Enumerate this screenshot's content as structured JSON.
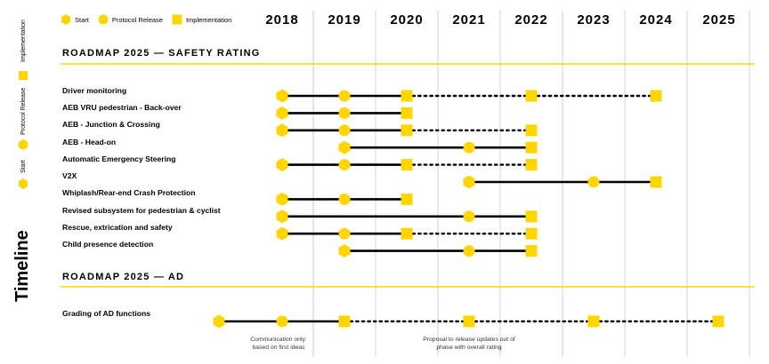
{
  "colors": {
    "marker": "#ffd500",
    "line": "#000000",
    "accent_rule": "#ffd500",
    "grid": "#c8c8c8"
  },
  "legend": {
    "start": "Start",
    "protocol_release": "Protocol Release",
    "implementation": "Implementation"
  },
  "side_legend": {
    "implementation": "Implementation",
    "protocol_release": "Protocol Release",
    "start": "Start",
    "timeline": "Timeline"
  },
  "years": [
    "2018",
    "2019",
    "2020",
    "2021",
    "2022",
    "2023",
    "2024",
    "2025"
  ],
  "sections": [
    {
      "title": "ROADMAP 2025 — SAFETY RATING"
    },
    {
      "title": "ROADMAP 2025 — AD"
    }
  ],
  "rows": [
    {
      "label": "Driver monitoring",
      "start": 2018,
      "release": 2019,
      "impl": 2020,
      "dots_to": [
        2022,
        2024
      ]
    },
    {
      "label": "AEB VRU pedestrian - Back-over",
      "start": 2018,
      "release": 2019,
      "impl": 2020,
      "dots_to": []
    },
    {
      "label": "AEB - Junction & Crossing",
      "start": 2018,
      "release": 2019,
      "impl": 2020,
      "dots_to": [
        2022
      ]
    },
    {
      "label": "AEB - Head-on",
      "start": 2019,
      "release": 2021,
      "impl": 2022,
      "dots_to": []
    },
    {
      "label": "Automatic Emergency Steering",
      "start": 2018,
      "release": 2019,
      "impl": 2020,
      "dots_to": [
        2022
      ]
    },
    {
      "label": "V2X",
      "start": 2021,
      "release": 2023,
      "impl": 2024,
      "dots_to": []
    },
    {
      "label": "Whiplash/Rear-end Crash Protection",
      "start": 2018,
      "release": 2019,
      "impl": 2020,
      "dots_to": []
    },
    {
      "label": "Revised subsystem for pedestrian & cyclist",
      "start": 2018,
      "release": 2021,
      "impl": 2022,
      "dots_to": []
    },
    {
      "label": "Rescue, extrication and safety",
      "start": 2018,
      "release": 2019,
      "impl": 2020,
      "dots_to": [
        2022
      ]
    },
    {
      "label": "Child presence detection",
      "start": 2019,
      "release": 2021,
      "impl": 2022,
      "dots_to": []
    }
  ],
  "ad_rows": [
    {
      "label": "Grading of AD functions",
      "starts": [
        2017,
        2018
      ],
      "impl": 2019,
      "dots_to": [
        2021,
        2023,
        2025
      ]
    }
  ],
  "notes": [
    {
      "text": "Communication only: based on first ideas"
    },
    {
      "text": "Proposal to release updates out of phase with overall rating"
    }
  ]
}
